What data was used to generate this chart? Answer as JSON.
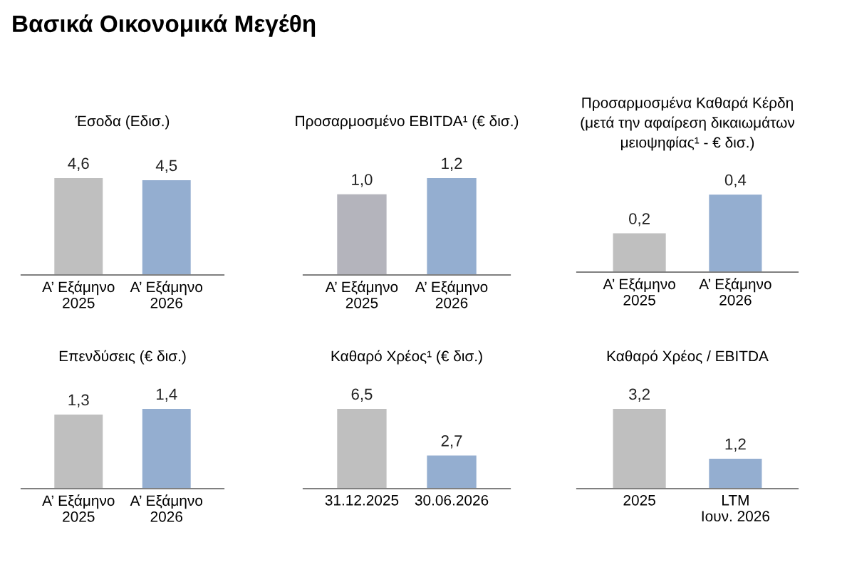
{
  "chart_data": [
    {
      "type": "bar",
      "title": "Έσοδα (Εδισ.)",
      "annotations": [
        "Βασικά Οικονομικά Μεγέθη"
      ],
      "categories": [
        "Α’ Εξάμηνο\n2025",
        "Α’ Εξάμηνο\n2026"
      ],
      "values": [
        4.6,
        4.5
      ],
      "value_labels": [
        "4,6",
        "4,5"
      ],
      "colors": [
        "#bfbfbf",
        "#94aed0"
      ],
      "grid": false,
      "legend": false,
      "tick_labels": "x"
    },
    {
      "type": "bar",
      "title": "Προσαρμοσμένο EBITDA¹ (€ δισ.)",
      "categories": [
        "Α’ Εξάμηνο\n2025",
        "Α’ Εξάμηνο\n2026"
      ],
      "values": [
        1.0,
        1.2
      ],
      "value_labels": [
        "1,0",
        "1,2"
      ],
      "colors": [
        "#b4b4bc",
        "#94aed0"
      ],
      "grid": false,
      "legend": false,
      "tick_labels": "x"
    },
    {
      "type": "bar",
      "title": "Προσαρμοσμένα Καθαρά Κέρδη\n(μετά την αφαίρεση δικαιωμάτων\nμειοψηφίας¹ - € δισ.)",
      "categories": [
        "Α’ Εξάμηνο\n2025",
        "Α’ Εξάμηνο\n2026"
      ],
      "values": [
        0.2,
        0.4
      ],
      "value_labels": [
        "0,2",
        "0,4"
      ],
      "colors": [
        "#bfbfbf",
        "#94aed0"
      ],
      "grid": false,
      "legend": false,
      "tick_labels": "x"
    },
    {
      "type": "bar",
      "title": "Επενδύσεις (€ δισ.)",
      "categories": [
        "Α’ Εξάμηνο\n2025",
        "Α’ Εξάμηνο\n2026"
      ],
      "values": [
        1.3,
        1.4
      ],
      "value_labels": [
        "1,3",
        "1,4"
      ],
      "colors": [
        "#bfbfbf",
        "#94aed0"
      ],
      "grid": false,
      "legend": false,
      "tick_labels": "x"
    },
    {
      "type": "bar",
      "title": "Καθαρό Χρέος¹ (€ δισ.)",
      "categories": [
        "31.12.2025",
        "30.06.2026"
      ],
      "values": [
        6.5,
        2.7
      ],
      "value_labels": [
        "6,5",
        "2,7"
      ],
      "colors": [
        "#bfbfbf",
        "#94aed0"
      ],
      "grid": false,
      "legend": false,
      "tick_labels": "x"
    },
    {
      "type": "bar",
      "title": "Καθαρό Χρέος / EBITDA",
      "categories": [
        "2025",
        "LTM\nΙουν. 2026"
      ],
      "values": [
        3.2,
        1.2
      ],
      "value_labels": [
        "3,2",
        "1,2"
      ],
      "colors": [
        "#bfbfbf",
        "#94aed0"
      ],
      "grid": false,
      "legend": false,
      "tick_labels": "x"
    }
  ]
}
